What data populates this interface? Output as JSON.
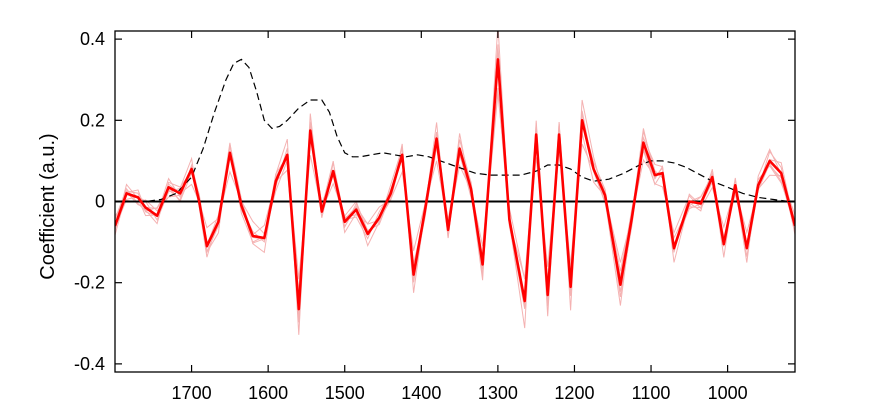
{
  "chart_data": {
    "type": "line",
    "title": "",
    "xlabel": "",
    "ylabel": "Coefficient (a.u.)",
    "x_reversed": true,
    "xlim": [
      1800,
      912
    ],
    "ylim": [
      -0.42,
      0.42
    ],
    "xticks": [
      1700,
      1600,
      1500,
      1400,
      1300,
      1200,
      1100,
      1000
    ],
    "yticks": [
      -0.4,
      -0.2,
      0,
      0.2,
      0.4
    ],
    "ytick_labels": [
      "-0.4",
      "-0.2",
      "0",
      "0.2",
      "0.4"
    ],
    "grid": false,
    "legend": "none",
    "colors": {
      "main": "#ff0000",
      "replicates": "#f4b2b2",
      "reference": "#000000",
      "zero_line": "#000000"
    },
    "x": [
      1800,
      1785,
      1770,
      1760,
      1745,
      1730,
      1715,
      1700,
      1690,
      1680,
      1665,
      1650,
      1635,
      1620,
      1605,
      1590,
      1575,
      1560,
      1545,
      1530,
      1515,
      1500,
      1485,
      1470,
      1455,
      1440,
      1425,
      1410,
      1395,
      1380,
      1365,
      1350,
      1335,
      1320,
      1300,
      1285,
      1265,
      1250,
      1235,
      1220,
      1205,
      1190,
      1175,
      1160,
      1140,
      1125,
      1110,
      1095,
      1085,
      1070,
      1050,
      1035,
      1020,
      1005,
      990,
      975,
      960,
      945,
      930,
      912
    ],
    "series": [
      {
        "values": [
          -0.06,
          0.02,
          0.01,
          -0.015,
          -0.035,
          0.035,
          0.02,
          0.08,
          0.0,
          -0.11,
          -0.05,
          0.12,
          -0.01,
          -0.085,
          -0.09,
          0.05,
          0.115,
          -0.265,
          0.175,
          -0.025,
          0.075,
          -0.05,
          -0.02,
          -0.08,
          -0.04,
          0.02,
          0.115,
          -0.18,
          -0.02,
          0.155,
          -0.07,
          0.13,
          0.03,
          -0.155,
          0.35,
          -0.045,
          -0.245,
          0.165,
          -0.23,
          0.165,
          -0.21,
          0.2,
          0.08,
          0.015,
          -0.205,
          -0.04,
          0.145,
          0.065,
          0.07,
          -0.115,
          0.0,
          -0.005,
          0.06,
          -0.105,
          0.04,
          -0.115,
          0.04,
          0.1,
          0.07,
          -0.06
        ]
      }
    ],
    "reference_curve": {
      "style": "dashed",
      "x": [
        1800,
        1780,
        1760,
        1740,
        1720,
        1700,
        1685,
        1670,
        1655,
        1645,
        1635,
        1625,
        1615,
        1605,
        1595,
        1585,
        1575,
        1560,
        1545,
        1530,
        1520,
        1510,
        1500,
        1490,
        1480,
        1465,
        1450,
        1435,
        1420,
        1405,
        1390,
        1375,
        1360,
        1345,
        1330,
        1310,
        1290,
        1270,
        1250,
        1235,
        1220,
        1205,
        1190,
        1175,
        1155,
        1135,
        1115,
        1100,
        1085,
        1070,
        1055,
        1040,
        1020,
        1000,
        980,
        960,
        940,
        920,
        912
      ],
      "values": [
        0.0,
        0.0,
        0.0,
        0.005,
        0.02,
        0.06,
        0.13,
        0.22,
        0.3,
        0.34,
        0.35,
        0.33,
        0.27,
        0.2,
        0.18,
        0.185,
        0.2,
        0.23,
        0.25,
        0.25,
        0.22,
        0.16,
        0.12,
        0.11,
        0.11,
        0.115,
        0.12,
        0.115,
        0.11,
        0.115,
        0.11,
        0.1,
        0.09,
        0.08,
        0.07,
        0.065,
        0.065,
        0.065,
        0.075,
        0.09,
        0.09,
        0.08,
        0.06,
        0.05,
        0.055,
        0.07,
        0.09,
        0.1,
        0.1,
        0.095,
        0.085,
        0.07,
        0.05,
        0.035,
        0.02,
        0.01,
        0.005,
        0.0,
        0.0
      ]
    }
  }
}
